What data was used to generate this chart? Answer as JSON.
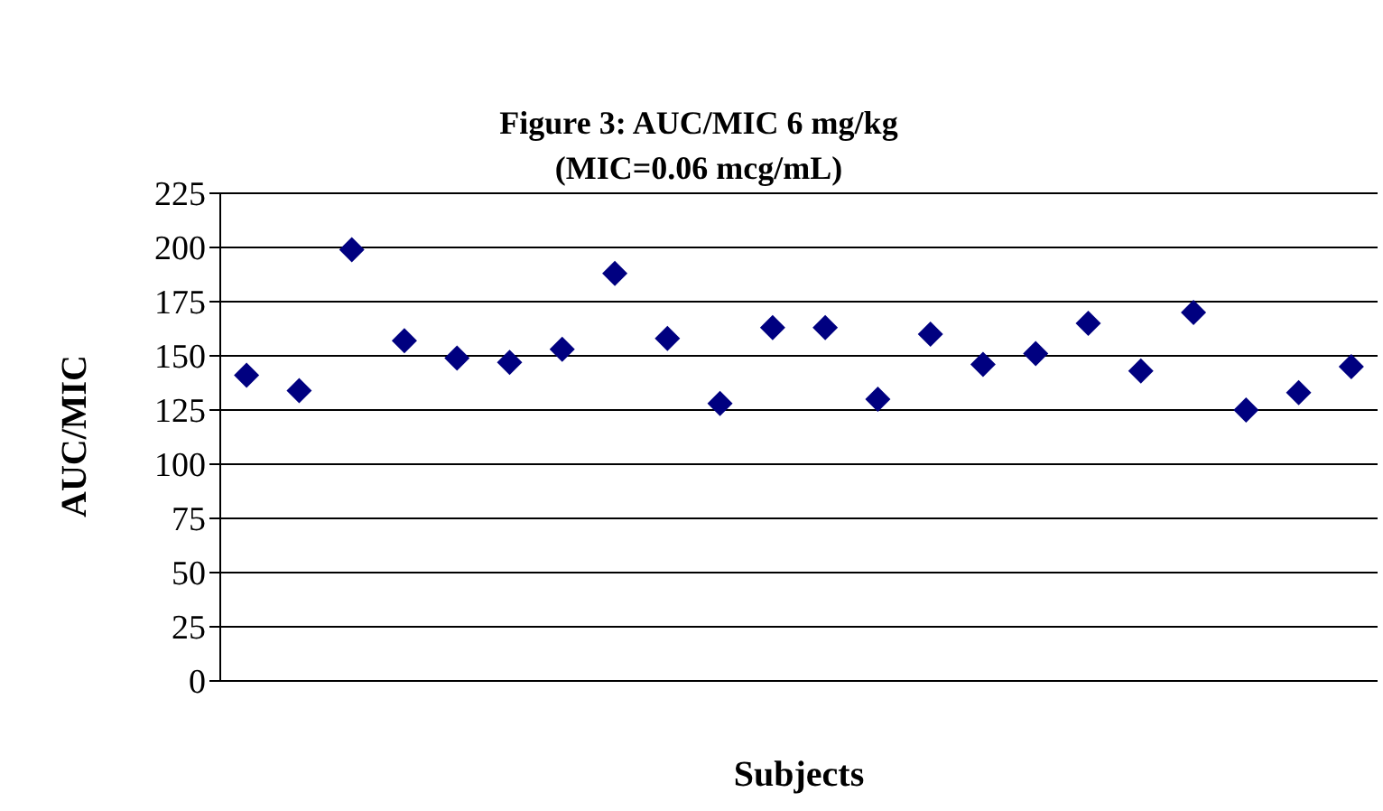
{
  "chart_data": {
    "type": "scatter",
    "title": "Figure 3: AUC/MIC 6 mg/kg",
    "subtitle": "(MIC=0.06 mcg/mL)",
    "xlabel": "Subjects",
    "ylabel": "AUC/MIC",
    "categories": [
      null,
      null,
      null,
      null,
      null,
      null,
      null,
      null,
      null,
      null,
      null,
      null,
      null,
      null,
      null,
      null,
      null,
      null,
      null,
      null,
      null,
      null
    ],
    "series": [
      {
        "color": "#000080",
        "values": [
          141,
          134,
          199,
          157,
          149,
          147,
          153,
          188,
          158,
          128,
          163,
          163,
          130,
          160,
          146,
          151,
          165,
          143,
          170,
          125,
          133,
          145
        ]
      }
    ],
    "ylim": [
      0,
      225
    ],
    "yticks": [
      0,
      25,
      50,
      75,
      100,
      125,
      150,
      175,
      200,
      225
    ],
    "grid": "y",
    "marker": "diamond",
    "tick_labels": "y"
  }
}
